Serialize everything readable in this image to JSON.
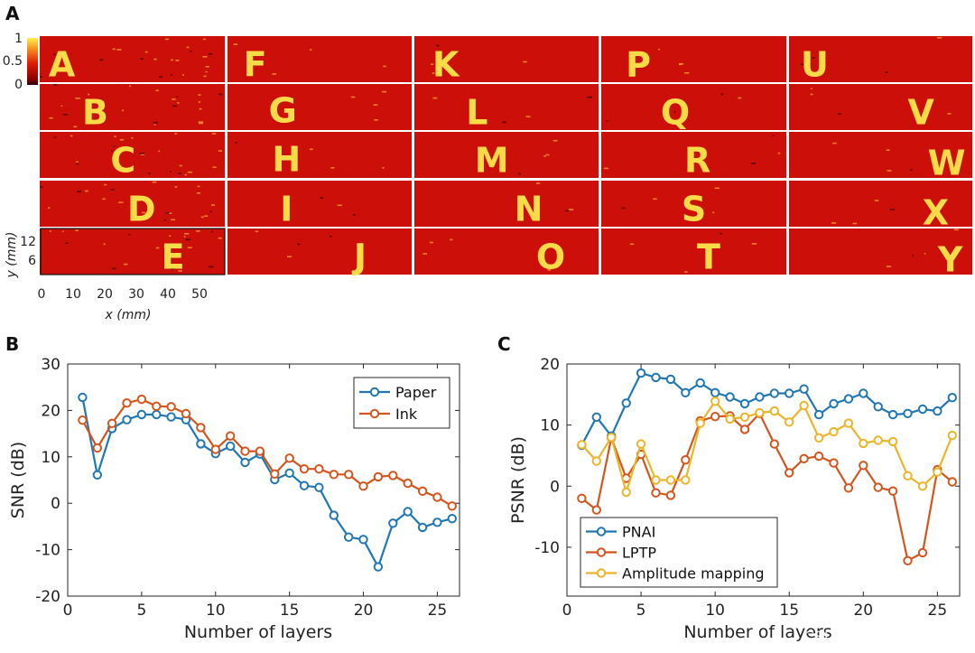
{
  "panel_labels": {
    "a": "A",
    "b": "B",
    "c": "C"
  },
  "watermark": "CSDN @虹科电子科技",
  "colors": {
    "heat_bg": "#cc0f08",
    "heat_letter": "#f7dc48",
    "paper": "#1f77b4",
    "ink": "#d2561e",
    "pnai": "#1f77b4",
    "lptp": "#d2561e",
    "amplitude": "#eab528"
  },
  "panel_a": {
    "letters": [
      "A",
      "B",
      "C",
      "D",
      "E",
      "F",
      "G",
      "H",
      "I",
      "J",
      "K",
      "L",
      "M",
      "N",
      "O",
      "P",
      "Q",
      "R",
      "S",
      "T",
      "U",
      "V",
      "W",
      "X",
      "Y"
    ],
    "colorbar": {
      "ticks": [
        "1",
        "0.5",
        "0"
      ],
      "range": [
        0,
        1
      ]
    },
    "ylabel": "y (mm)",
    "yticks": [
      "12",
      "6"
    ],
    "xlabel": "x (mm)",
    "xticks": [
      "0",
      "10",
      "20",
      "30",
      "40",
      "50"
    ]
  },
  "chart_data": [
    {
      "id": "B",
      "type": "line",
      "xlabel": "Number of layers",
      "ylabel": "SNR (dB)",
      "xlim": [
        0,
        26.5
      ],
      "ylim": [
        -20,
        30
      ],
      "xticks": [
        0,
        5,
        10,
        15,
        20,
        25
      ],
      "yticks": [
        -20,
        -10,
        0,
        10,
        20,
        30
      ],
      "legend_position": "top-right",
      "x": [
        1,
        2,
        3,
        4,
        5,
        6,
        7,
        8,
        9,
        10,
        11,
        12,
        13,
        14,
        15,
        16,
        17,
        18,
        19,
        20,
        21,
        22,
        23,
        24,
        25,
        26
      ],
      "series": [
        {
          "name": "Paper",
          "values": [
            22.8,
            6.1,
            16.1,
            18,
            19.1,
            19.1,
            18.6,
            18,
            12.8,
            10.7,
            12.3,
            8.8,
            10.6,
            5.1,
            6.5,
            3.8,
            3.4,
            -2.6,
            -7.3,
            -7.8,
            -13.7,
            -4.3,
            -1.8,
            -5.2,
            -4.1,
            -3.3
          ]
        },
        {
          "name": "Ink",
          "values": [
            17.9,
            11.9,
            17.2,
            21.6,
            22.4,
            20.9,
            20.8,
            19.3,
            16.3,
            11.6,
            14.5,
            11.2,
            11.2,
            6.3,
            9.7,
            7.4,
            7.4,
            6.2,
            6.2,
            3.7,
            5.7,
            6,
            4.3,
            2.6,
            1.3,
            -0.6
          ]
        }
      ]
    },
    {
      "id": "C",
      "type": "line",
      "xlabel": "Number of layers",
      "ylabel": "PSNR (dB)",
      "xlim": [
        0,
        26.5
      ],
      "ylim": [
        -18,
        20
      ],
      "xticks": [
        0,
        5,
        10,
        15,
        20,
        25
      ],
      "yticks": [
        -10,
        0,
        10,
        20
      ],
      "legend_position": "bottom-left",
      "x": [
        1,
        2,
        3,
        4,
        5,
        6,
        7,
        8,
        9,
        10,
        11,
        12,
        13,
        14,
        15,
        16,
        17,
        18,
        19,
        20,
        21,
        22,
        23,
        24,
        25,
        26
      ],
      "series": [
        {
          "name": "PNAI",
          "values": [
            6.7,
            11.3,
            8.2,
            13.6,
            18.5,
            17.8,
            17.5,
            15.3,
            16.9,
            15.3,
            14.6,
            13.5,
            14.6,
            15.2,
            15.2,
            15.9,
            11.7,
            13.5,
            14.3,
            15.2,
            13,
            11.7,
            11.9,
            12.6,
            12.3,
            14.5
          ]
        },
        {
          "name": "LPTP",
          "values": [
            -2,
            -3.9,
            7.9,
            1.3,
            5.2,
            -1.1,
            -1.5,
            4.3,
            10.7,
            11.4,
            11.5,
            9.3,
            11.9,
            6.9,
            2.2,
            4.5,
            4.9,
            3.8,
            -0.3,
            3.4,
            -0.2,
            -0.8,
            -12.2,
            -10.9,
            2.7,
            0.7
          ]
        },
        {
          "name": "Amplitude mapping",
          "values": [
            6.8,
            4.1,
            8,
            -1,
            6.9,
            1,
            1,
            1,
            10.3,
            13.9,
            11,
            11.3,
            12,
            12.3,
            10.5,
            13.2,
            7.9,
            8.9,
            10.3,
            7,
            7.5,
            7.3,
            1.7,
            0,
            2.3,
            8.3
          ]
        }
      ]
    }
  ]
}
